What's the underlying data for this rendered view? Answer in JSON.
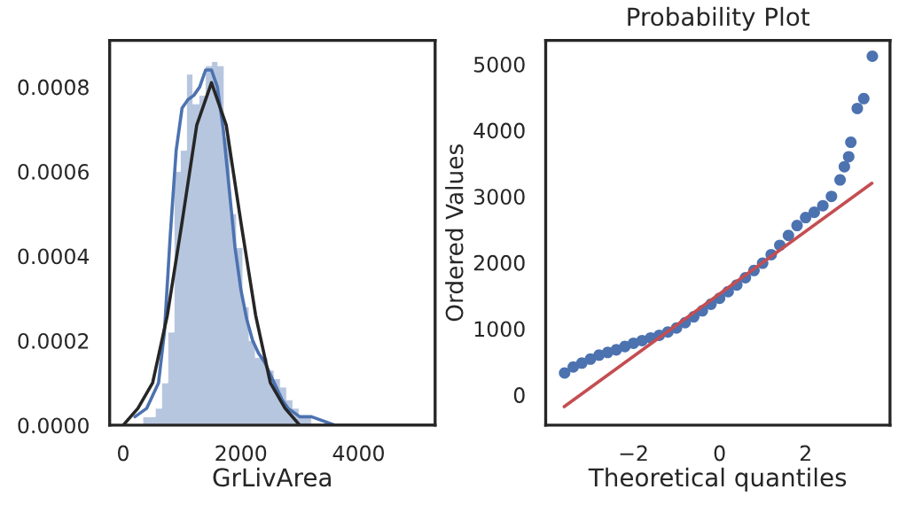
{
  "chart_data": [
    {
      "type": "histogram",
      "xlabel": "GrLivArea",
      "xlim": [
        -230,
        5300
      ],
      "ylim": [
        0,
        0.00091
      ],
      "xticks": [
        0,
        2000,
        4000
      ],
      "yticks": [
        {
          "value": 0,
          "label": "0.0000"
        },
        {
          "value": 0.0002,
          "label": "0.0002"
        },
        {
          "value": 0.0004,
          "label": "0.0004"
        },
        {
          "value": 0.0006,
          "label": "0.0006"
        },
        {
          "value": 0.0008,
          "label": "0.0008"
        }
      ],
      "bins": [
        334,
        440,
        546,
        653,
        759,
        865,
        971,
        1077,
        1183,
        1290,
        1396,
        1502,
        1608,
        1714,
        1820,
        1926,
        2033,
        2139,
        2245,
        2351,
        2457,
        2563,
        2669,
        2776,
        2882,
        2988,
        3094,
        3200,
        3306,
        3413,
        3519,
        3625,
        3731,
        3837,
        3943,
        4049,
        4156,
        4262,
        4368,
        4474,
        4580,
        4686,
        4793,
        4899,
        5005,
        5111,
        5217,
        5323,
        5430,
        5536,
        5642
      ],
      "values": [
        2e-05,
        2e-05,
        4e-05,
        0.0001,
        0.00022,
        0.0006,
        0.00065,
        0.00083,
        0.00076,
        0.00078,
        0.00085,
        0.00086,
        0.00085,
        0.00068,
        0.0005,
        0.00042,
        0.00028,
        0.0002,
        0.00016,
        0.00016,
        0.00013,
        0.00011,
        9e-05,
        6e-05,
        4e-05,
        2e-05,
        2e-05,
        0,
        0,
        0,
        0,
        0,
        0,
        0,
        0,
        0,
        0,
        0,
        0,
        0,
        0,
        0,
        0,
        0,
        0,
        0,
        0,
        0,
        0,
        0
      ],
      "color": "#b7c6df",
      "series": [
        {
          "type": "line",
          "color": "#4c72b0",
          "x": [
            200,
            400,
            600,
            700,
            800,
            900,
            1000,
            1100,
            1200,
            1300,
            1400,
            1500,
            1600,
            1700,
            1800,
            1900,
            2000,
            2100,
            2200,
            2300,
            2400,
            2500,
            2600,
            2700,
            2800,
            3000,
            3200,
            3600,
            4000
          ],
          "values": [
            2e-05,
            4e-05,
            0.0001,
            0.00022,
            0.00045,
            0.00065,
            0.00075,
            0.00077,
            0.00078,
            0.0008,
            0.00084,
            0.00084,
            0.0008,
            0.0007,
            0.00056,
            0.00042,
            0.00032,
            0.00025,
            0.0002,
            0.00017,
            0.00015,
            0.00012,
            9e-05,
            6e-05,
            4e-05,
            2e-05,
            2e-05,
            0,
            0
          ]
        },
        {
          "type": "line",
          "color": "#262626",
          "x": [
            0,
            250,
            500,
            750,
            1000,
            1250,
            1500,
            1750,
            2000,
            2250,
            2500,
            2750,
            3000,
            3500,
            4000,
            5300
          ],
          "values": [
            0,
            4e-05,
            0.0001,
            0.00026,
            0.00048,
            0.00071,
            0.00081,
            0.00071,
            0.00048,
            0.00026,
            0.0001,
            4e-05,
            0,
            0,
            0,
            0
          ]
        }
      ]
    },
    {
      "type": "scatter",
      "title": "Probability Plot",
      "xlabel": "Theoretical quantiles",
      "ylabel": "Ordered Values",
      "xlim": [
        -4.04,
        3.96
      ],
      "ylim": [
        -460,
        5360
      ],
      "xticks": [
        {
          "value": -2,
          "label": "−2"
        },
        0,
        2
      ],
      "yticks": [
        0,
        1000,
        2000,
        3000,
        4000,
        5000
      ],
      "series": [
        {
          "type": "scatter",
          "marker": "circle",
          "color": "#4c72b0",
          "x": [
            -3.6,
            -3.4,
            -3.2,
            -3.0,
            -2.8,
            -2.6,
            -2.4,
            -2.2,
            -2.0,
            -1.8,
            -1.6,
            -1.4,
            -1.2,
            -1.0,
            -0.8,
            -0.6,
            -0.4,
            -0.2,
            0,
            0.2,
            0.4,
            0.6,
            0.8,
            1.0,
            1.2,
            1.4,
            1.6,
            1.8,
            2.0,
            2.2,
            2.4,
            2.6,
            2.8,
            2.9,
            3.0,
            3.05,
            3.2,
            3.35,
            3.55
          ],
          "values": [
            330,
            420,
            480,
            540,
            600,
            640,
            680,
            730,
            780,
            820,
            860,
            900,
            950,
            1010,
            1090,
            1180,
            1270,
            1370,
            1460,
            1560,
            1660,
            1770,
            1880,
            1990,
            2120,
            2260,
            2410,
            2560,
            2680,
            2760,
            2860,
            3000,
            3250,
            3450,
            3600,
            3820,
            4330,
            4480,
            5120
          ]
        },
        {
          "type": "line",
          "color": "#c44e52",
          "x": [
            -3.61,
            3.54
          ],
          "values": [
            -180,
            3200
          ]
        }
      ]
    }
  ]
}
